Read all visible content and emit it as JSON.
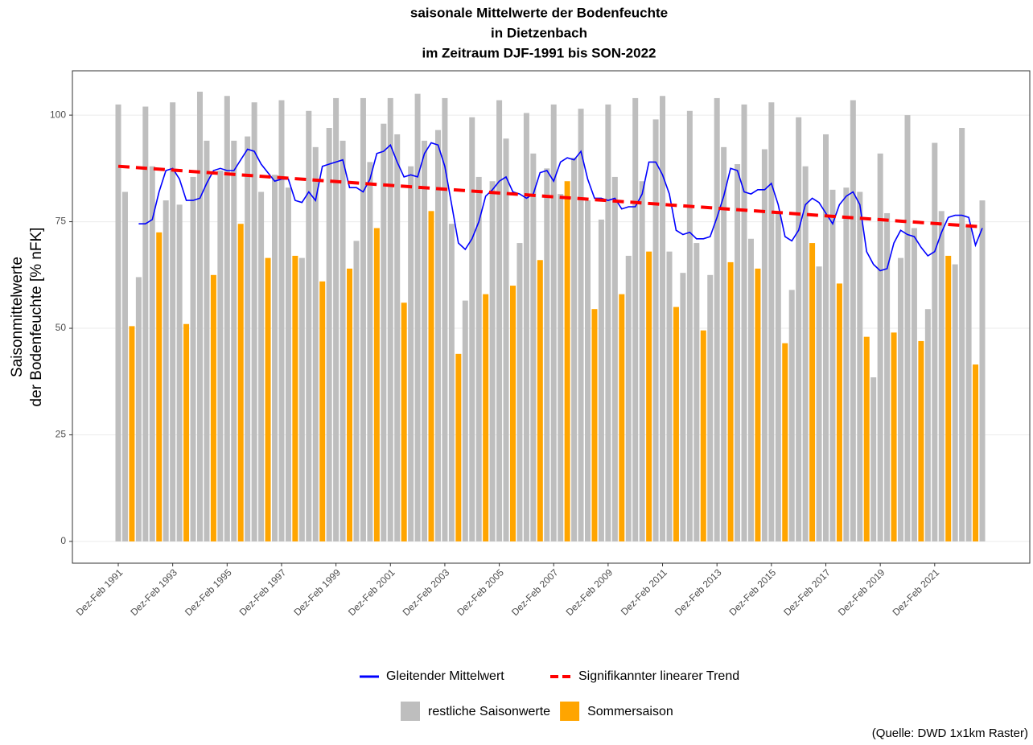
{
  "chart_data": {
    "type": "bar",
    "title": [
      "saisonale Mittelwerte der Bodenfeuchte",
      "in Dietzenbach",
      "im Zeitraum DJF-1991 bis SON-2022"
    ],
    "ylabel": [
      "Saisonmittelwerte",
      "der Bodenfeuchte [% nFK]"
    ],
    "caption": "(Quelle: DWD 1x1km Raster)",
    "ylim": [
      -5.1,
      110.4
    ],
    "yticks": [
      0,
      25,
      50,
      75,
      100
    ],
    "grid": true,
    "categories": [
      "Dez-Feb 1991",
      null,
      null,
      null,
      null,
      null,
      null,
      null,
      "Dez-Feb 1993",
      null,
      null,
      null,
      null,
      null,
      null,
      null,
      "Dez-Feb 1995",
      null,
      null,
      null,
      null,
      null,
      null,
      null,
      "Dez-Feb 1997",
      null,
      null,
      null,
      null,
      null,
      null,
      null,
      "Dez-Feb 1999",
      null,
      null,
      null,
      null,
      null,
      null,
      null,
      "Dez-Feb 2001",
      null,
      null,
      null,
      null,
      null,
      null,
      null,
      "Dez-Feb 2003",
      null,
      null,
      null,
      null,
      null,
      null,
      null,
      "Dez-Feb 2005",
      null,
      null,
      null,
      null,
      null,
      null,
      null,
      "Dez-Feb 2007",
      null,
      null,
      null,
      null,
      null,
      null,
      null,
      "Dez-Feb 2009",
      null,
      null,
      null,
      null,
      null,
      null,
      null,
      "Dez-Feb 2011",
      null,
      null,
      null,
      null,
      null,
      null,
      null,
      "Dez-Feb 2013",
      null,
      null,
      null,
      null,
      null,
      null,
      null,
      "Dez-Feb 2015",
      null,
      null,
      null,
      null,
      null,
      null,
      null,
      "Dez-Feb 2017",
      null,
      null,
      null,
      null,
      null,
      null,
      null,
      "Dez-Feb 2019",
      null,
      null,
      null,
      null,
      null,
      null,
      null,
      "Dez-Feb 2021",
      null,
      null,
      null,
      null,
      null,
      null,
      null
    ],
    "series": [
      {
        "name": "restliche Saisonwerte",
        "type": "bar",
        "color": "#bebebe",
        "values": [
          102.5,
          82,
          null,
          62,
          102,
          88,
          null,
          80,
          103,
          79,
          null,
          85.5,
          105.5,
          94,
          null,
          87,
          104.5,
          94,
          null,
          95,
          103,
          82,
          null,
          86,
          103.5,
          83,
          null,
          66.5,
          101,
          92.5,
          null,
          97,
          104,
          94,
          null,
          70.5,
          104,
          89,
          null,
          98,
          104,
          95.5,
          null,
          88,
          105,
          94,
          null,
          96.5,
          104,
          74.5,
          null,
          56.5,
          99.5,
          85.5,
          null,
          84.5,
          103.5,
          94.5,
          null,
          70,
          100.5,
          91,
          null,
          87.5,
          102.5,
          81.5,
          null,
          90,
          101.5,
          80,
          null,
          75.5,
          102.5,
          85.5,
          null,
          67,
          104,
          84.5,
          null,
          99,
          104.5,
          68,
          null,
          63,
          101,
          70,
          null,
          62.5,
          104,
          92.5,
          null,
          88.5,
          102.5,
          71,
          null,
          92,
          103,
          77,
          null,
          59,
          99.5,
          88,
          null,
          64.5,
          95.5,
          82.5,
          null,
          83,
          103.5,
          82,
          null,
          38.5,
          91,
          77,
          null,
          66.5,
          100,
          73.5,
          null,
          54.5,
          93.5,
          77.5,
          null,
          65,
          97,
          74,
          null,
          80
        ]
      },
      {
        "name": "Sommersaison",
        "type": "bar",
        "color": "#ffa500",
        "values": [
          null,
          null,
          50.5,
          null,
          null,
          null,
          72.5,
          null,
          null,
          null,
          51,
          null,
          null,
          null,
          62.5,
          null,
          null,
          null,
          74.5,
          null,
          null,
          null,
          66.5,
          null,
          null,
          null,
          67,
          null,
          null,
          null,
          61,
          null,
          null,
          null,
          64,
          null,
          null,
          null,
          73.5,
          null,
          null,
          null,
          56,
          null,
          null,
          null,
          77.5,
          null,
          null,
          null,
          44,
          null,
          null,
          null,
          58,
          null,
          null,
          null,
          60,
          null,
          null,
          null,
          66,
          null,
          null,
          null,
          84.5,
          null,
          null,
          null,
          54.5,
          null,
          null,
          null,
          58,
          null,
          null,
          null,
          68,
          null,
          null,
          null,
          55,
          null,
          null,
          null,
          49.5,
          null,
          null,
          null,
          65.5,
          null,
          null,
          null,
          64,
          null,
          null,
          null,
          46.5,
          null,
          null,
          null,
          70,
          null,
          null,
          null,
          60.5,
          null,
          null,
          null,
          48,
          null,
          null,
          null,
          49,
          null,
          null,
          null,
          47,
          null,
          null,
          null,
          67,
          null,
          null,
          null,
          41.5,
          null
        ]
      },
      {
        "name": "Gleitender Mittelwert",
        "type": "line",
        "color": "#0000ff",
        "values": [
          null,
          null,
          null,
          74.5,
          74.5,
          75.5,
          82,
          87,
          87.5,
          85,
          80,
          80,
          80.5,
          84,
          87,
          87.5,
          87,
          87,
          89.5,
          92,
          91.5,
          88.5,
          86.5,
          84.5,
          85,
          85,
          80,
          79.5,
          82,
          80,
          88,
          88.5,
          89,
          89.5,
          83,
          83,
          82,
          85,
          91,
          91.5,
          93,
          89,
          85.5,
          86,
          85.5,
          91,
          93.5,
          93,
          88,
          79,
          70,
          68.5,
          71,
          75,
          81,
          82.5,
          84.5,
          85.5,
          82,
          81.5,
          80.5,
          81.5,
          86.5,
          87,
          84.5,
          89,
          90,
          89.5,
          91.5,
          85,
          80.5,
          80.5,
          80,
          80.5,
          78,
          78.5,
          78.5,
          81.5,
          89,
          89,
          86,
          81.5,
          73,
          72,
          72.5,
          71,
          71,
          71.5,
          76,
          81,
          87.5,
          87,
          82,
          81.5,
          82.5,
          82.5,
          84,
          79,
          71.5,
          70.5,
          73,
          79,
          80.5,
          79.5,
          77,
          74.5,
          79,
          81,
          82,
          79,
          68,
          65,
          63.5,
          64,
          70,
          73,
          72,
          71.5,
          69,
          67,
          68,
          72.5,
          76,
          76.5,
          76.5,
          76,
          69.5,
          73.5
        ]
      }
    ],
    "trend": {
      "name": "Signifikannter linearer Trend",
      "color": "#ff0000",
      "values": [
        88,
        73.8
      ]
    }
  }
}
